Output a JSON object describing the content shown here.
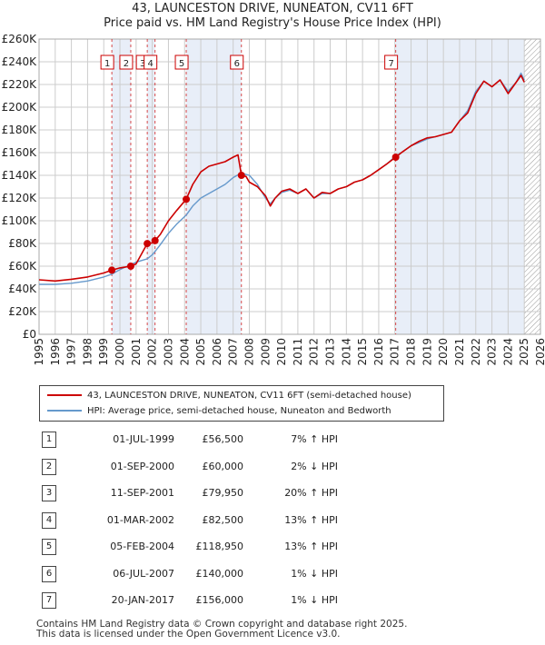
{
  "title_line1": "43, LAUNCESTON DRIVE, NUNEATON, CV11 6FT",
  "title_line2": "Price paid vs. HM Land Registry's House Price Index (HPI)",
  "legend": {
    "red_label": "43, LAUNCESTON DRIVE, NUNEATON, CV11 6FT (semi-detached house)",
    "blue_label": "HPI: Average price, semi-detached house, Nuneaton and Bedworth"
  },
  "colors": {
    "red": "#cc0000",
    "blue": "#6699cc",
    "shade": "#e8eef8",
    "grid": "#cccccc",
    "hatch": "#999999"
  },
  "transactions": [
    {
      "n": "1",
      "date": "01-JUL-1999",
      "price": "£56,500",
      "hpi": "7% ↑ HPI"
    },
    {
      "n": "2",
      "date": "01-SEP-2000",
      "price": "£60,000",
      "hpi": "2% ↓ HPI"
    },
    {
      "n": "3",
      "date": "11-SEP-2001",
      "price": "£79,950",
      "hpi": "20% ↑ HPI"
    },
    {
      "n": "4",
      "date": "01-MAR-2002",
      "price": "£82,500",
      "hpi": "13% ↑ HPI"
    },
    {
      "n": "5",
      "date": "05-FEB-2004",
      "price": "£118,950",
      "hpi": "13% ↑ HPI"
    },
    {
      "n": "6",
      "date": "06-JUL-2007",
      "price": "£140,000",
      "hpi": "1% ↓ HPI"
    },
    {
      "n": "7",
      "date": "20-JAN-2017",
      "price": "£156,000",
      "hpi": "1% ↓ HPI"
    }
  ],
  "footer_line1": "Contains HM Land Registry data © Crown copyright and database right 2025.",
  "footer_line2": "This data is licensed under the Open Government Licence v3.0.",
  "chart_data": {
    "type": "line",
    "xlim": [
      1995,
      2026
    ],
    "ylim": [
      0,
      260000
    ],
    "x_ticks": [
      "1995",
      "1996",
      "1997",
      "1998",
      "1999",
      "2000",
      "2001",
      "2002",
      "2003",
      "2004",
      "2005",
      "2006",
      "2007",
      "2008",
      "2009",
      "2010",
      "2011",
      "2012",
      "2013",
      "2014",
      "2015",
      "2016",
      "2017",
      "2018",
      "2019",
      "2020",
      "2021",
      "2022",
      "2023",
      "2024",
      "2025",
      "2026"
    ],
    "y_ticks": [
      "£0",
      "£20K",
      "£40K",
      "£60K",
      "£80K",
      "£100K",
      "£120K",
      "£140K",
      "£160K",
      "£180K",
      "£200K",
      "£220K",
      "£240K",
      "£260K"
    ],
    "hatch_from": 2025.0,
    "series": [
      {
        "name": "43, LAUNCESTON DRIVE, NUNEATON, CV11 6FT (semi-detached house)",
        "color": "#cc0000",
        "x": [
          1995.0,
          1996.0,
          1997.0,
          1998.0,
          1999.0,
          1999.5,
          2000.0,
          2000.67,
          2001.0,
          2001.69,
          2002.0,
          2002.17,
          2002.5,
          2003.0,
          2003.5,
          2004.1,
          2004.5,
          2005.0,
          2005.5,
          2006.0,
          2006.5,
          2007.0,
          2007.3,
          2007.51,
          2007.8,
          2008.0,
          2008.5,
          2009.0,
          2009.3,
          2009.6,
          2010.0,
          2010.5,
          2011.0,
          2011.5,
          2012.0,
          2012.5,
          2013.0,
          2013.5,
          2014.0,
          2014.5,
          2015.0,
          2015.5,
          2016.0,
          2016.5,
          2017.05,
          2017.5,
          2018.0,
          2018.5,
          2019.0,
          2019.5,
          2020.0,
          2020.5,
          2021.0,
          2021.5,
          2022.0,
          2022.5,
          2023.0,
          2023.5,
          2024.0,
          2024.5,
          2024.8,
          2025.0
        ],
        "y": [
          48000,
          47000,
          48500,
          50500,
          54000,
          56500,
          58500,
          60000,
          62000,
          79950,
          80500,
          82500,
          88000,
          100000,
          109000,
          118950,
          132000,
          143000,
          148000,
          150000,
          152000,
          156000,
          158000,
          140000,
          139000,
          134000,
          130000,
          122000,
          113000,
          120000,
          126000,
          128000,
          124000,
          128000,
          120000,
          125000,
          124000,
          128000,
          130000,
          134000,
          136000,
          140000,
          145000,
          150000,
          156000,
          161000,
          166000,
          170000,
          173000,
          174000,
          176000,
          178000,
          188000,
          195000,
          212000,
          223000,
          218000,
          224000,
          212000,
          222000,
          228000,
          222000
        ]
      },
      {
        "name": "HPI: Average price, semi-detached house, Nuneaton and Bedworth",
        "color": "#6699cc",
        "x": [
          1995.0,
          1996.0,
          1997.0,
          1998.0,
          1999.0,
          1999.5,
          2000.0,
          2000.67,
          2001.0,
          2001.69,
          2002.0,
          2002.17,
          2002.5,
          2003.0,
          2003.5,
          2004.1,
          2004.5,
          2005.0,
          2005.5,
          2006.0,
          2006.5,
          2007.0,
          2007.5,
          2008.0,
          2008.5,
          2009.0,
          2009.3,
          2009.6,
          2010.0,
          2010.5,
          2011.0,
          2011.5,
          2012.0,
          2012.5,
          2013.0,
          2013.5,
          2014.0,
          2014.5,
          2015.0,
          2015.5,
          2016.0,
          2016.5,
          2017.05,
          2017.5,
          2018.0,
          2018.5,
          2019.0,
          2019.5,
          2020.0,
          2020.5,
          2021.0,
          2021.5,
          2022.0,
          2022.5,
          2023.0,
          2023.5,
          2024.0,
          2024.5,
          2024.8,
          2025.0
        ],
        "y": [
          44000,
          44000,
          45000,
          47000,
          50500,
          53000,
          57000,
          61500,
          63500,
          66500,
          70000,
          73000,
          79000,
          89000,
          97000,
          105000,
          113000,
          120000,
          124000,
          128000,
          132000,
          138000,
          142000,
          140000,
          132000,
          120000,
          115000,
          120000,
          125000,
          127000,
          124000,
          128000,
          120000,
          124000,
          124000,
          128000,
          130000,
          134000,
          136000,
          140000,
          145000,
          150000,
          157000,
          161000,
          166000,
          169000,
          172000,
          174000,
          176000,
          178000,
          188000,
          197000,
          214000,
          223000,
          218000,
          224000,
          214000,
          222000,
          230000,
          224000
        ]
      }
    ],
    "sales": [
      {
        "label": "1",
        "x": 1999.5,
        "y": 56500
      },
      {
        "label": "2",
        "x": 2000.67,
        "y": 60000
      },
      {
        "label": "3",
        "x": 2001.69,
        "y": 79950
      },
      {
        "label": "4",
        "x": 2002.17,
        "y": 82500
      },
      {
        "label": "5",
        "x": 2004.1,
        "y": 118950
      },
      {
        "label": "6",
        "x": 2007.51,
        "y": 140000
      },
      {
        "label": "7",
        "x": 2017.05,
        "y": 156000
      }
    ],
    "grid": true
  }
}
